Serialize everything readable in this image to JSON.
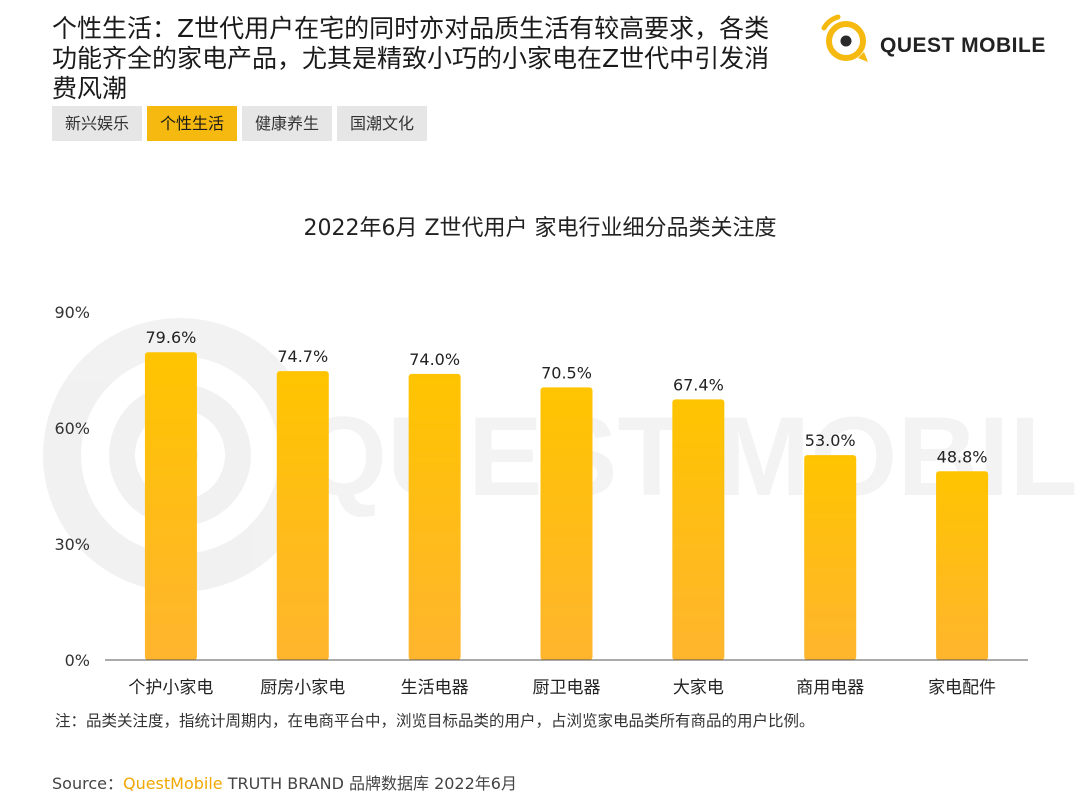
{
  "header": {
    "headline": "个性生活：Z世代用户在宅的同时亦对品质生活有较高要求，各类功能齐全的家电产品，尤其是精致小巧的小家电在Z世代中引发消费风潮",
    "logo_text": "QUEST MOBILE"
  },
  "tabs": [
    {
      "label": "新兴娱乐",
      "active": false
    },
    {
      "label": "个性生活",
      "active": true
    },
    {
      "label": "健康养生",
      "active": false
    },
    {
      "label": "国潮文化",
      "active": false
    }
  ],
  "watermark_text": "QUEST MOBILE",
  "chart_data": {
    "type": "bar",
    "title": "2022年6月 Z世代用户 家电行业细分品类关注度",
    "categories": [
      "个护小家电",
      "厨房小家电",
      "生活电器",
      "厨卫电器",
      "大家电",
      "商用电器",
      "家电配件"
    ],
    "values": [
      79.6,
      74.7,
      74.0,
      70.5,
      67.4,
      53.0,
      48.8
    ],
    "value_labels": [
      "79.6%",
      "74.7%",
      "74.0%",
      "70.5%",
      "67.4%",
      "53.0%",
      "48.8%"
    ],
    "ylim": [
      0,
      90
    ],
    "yticks": [
      0,
      30,
      60,
      90
    ],
    "ytick_labels": [
      "0%",
      "30%",
      "60%",
      "90%"
    ],
    "xlabel": "",
    "ylabel": "",
    "grid": false,
    "bar_color_top": "#ffc400",
    "bar_color_bottom": "#ffb52e"
  },
  "footer": {
    "note": "注：品类关注度，指统计周期内，在电商平台中，浏览目标品类的用户，占浏览家电品类所有商品的用户比例。",
    "source_prefix": "Source：",
    "source_brand": "QuestMobile",
    "source_suffix": " TRUTH BRAND 品牌数据库 2022年6月"
  }
}
